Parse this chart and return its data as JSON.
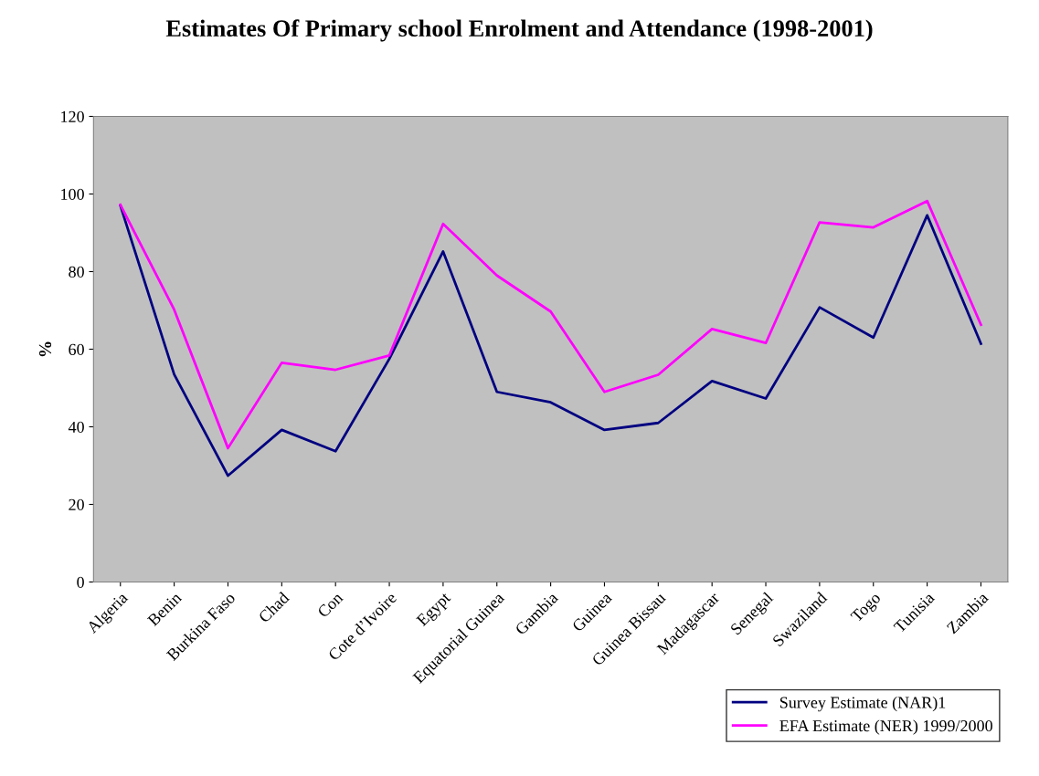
{
  "chart_data": {
    "type": "line",
    "title": "Estimates Of Primary school Enrolment and Attendance (1998-2001)",
    "ylabel": "%",
    "categories": [
      "Algeria",
      "Benin",
      "Burkina Faso",
      "Chad",
      "Con",
      "Cote d’Ivoire",
      "Egypt",
      "Equatorial Guinea",
      "Gambia",
      "Guinea",
      "Guinea Bissau",
      "Madagascar",
      "Senegal",
      "Swaziland",
      "Togo",
      "Tunisia",
      "Zambia"
    ],
    "series": [
      {
        "name": "Survey Estimate (NAR)1",
        "color": "#000080",
        "values": [
          97,
          53.5,
          27.4,
          39.2,
          33.7,
          57.5,
          85.2,
          49,
          46.3,
          39.2,
          41,
          51.8,
          47.3,
          70.8,
          63,
          94.5,
          61.4
        ]
      },
      {
        "name": "EFA Estimate (NER) 1999/2000",
        "color": "#ff00ff",
        "values": [
          97.2,
          70.2,
          34.5,
          56.5,
          54.7,
          58.4,
          92.3,
          79,
          69.7,
          49,
          53.4,
          65.2,
          61.6,
          92.7,
          91.4,
          98.2,
          66.3
        ]
      }
    ],
    "ylim": [
      0,
      120
    ],
    "yticks": [
      0,
      20,
      40,
      60,
      80,
      100,
      120
    ],
    "grid": false,
    "legend": "bottom right",
    "marker": "none",
    "line_style": "solid"
  }
}
